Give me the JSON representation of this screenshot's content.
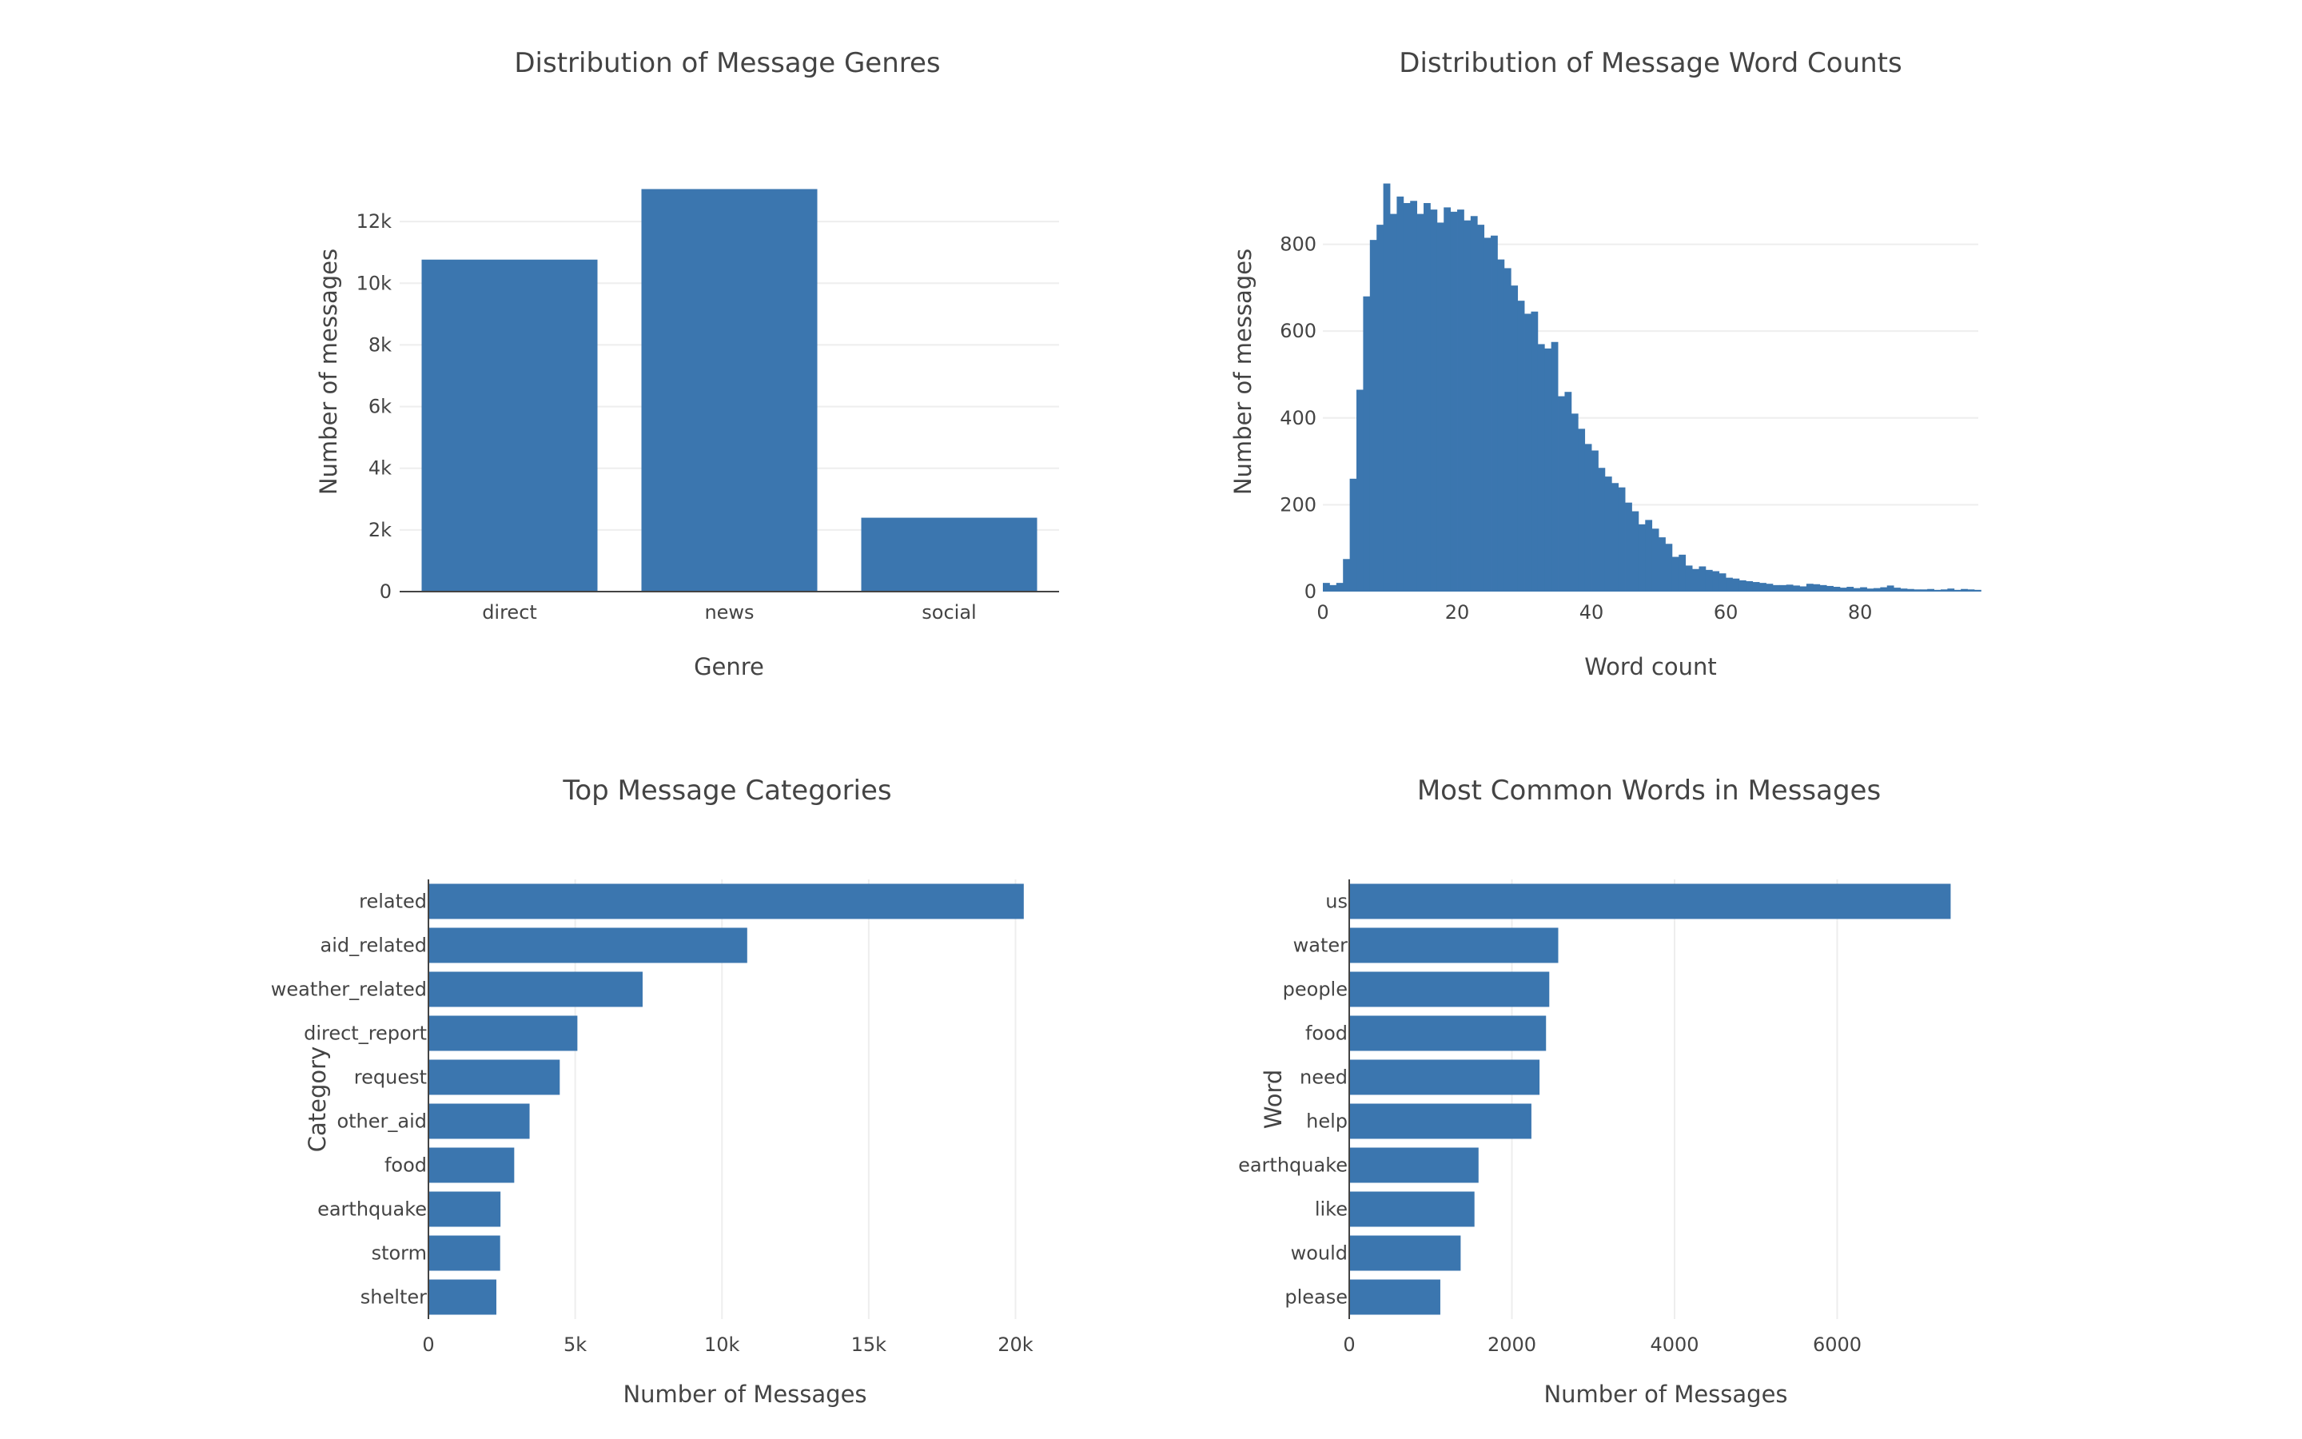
{
  "chart_data": [
    {
      "type": "bar",
      "title": "Distribution of Message Genres",
      "xlabel": "Genre",
      "ylabel": "Number of messages",
      "categories": [
        "direct",
        "news",
        "social"
      ],
      "values": [
        10766,
        13054,
        2396
      ],
      "ylim": [
        0,
        13741
      ],
      "yticks": [
        0,
        2000,
        4000,
        6000,
        8000,
        10000,
        12000
      ],
      "ytick_labels": [
        "0",
        "2k",
        "4k",
        "6k",
        "8k",
        "10k",
        "12k"
      ],
      "grid": true,
      "color": "#3b76af"
    },
    {
      "type": "bar",
      "title": "Distribution of Message Word Counts",
      "xlabel": "Word count",
      "ylabel": "Number of messages",
      "bin_width": 1,
      "bin_start": 0,
      "values": [
        20,
        15,
        20,
        75,
        260,
        465,
        680,
        810,
        845,
        940,
        870,
        910,
        895,
        900,
        870,
        895,
        880,
        850,
        885,
        875,
        880,
        855,
        865,
        845,
        815,
        820,
        765,
        745,
        705,
        670,
        640,
        645,
        570,
        560,
        575,
        450,
        460,
        410,
        375,
        340,
        325,
        285,
        265,
        250,
        240,
        205,
        185,
        155,
        165,
        145,
        125,
        110,
        80,
        85,
        60,
        52,
        58,
        50,
        47,
        42,
        32,
        30,
        26,
        24,
        22,
        20,
        18,
        15,
        15,
        16,
        14,
        12,
        18,
        17,
        15,
        13,
        11,
        9,
        11,
        8,
        10,
        7,
        8,
        10,
        14,
        9,
        7,
        6,
        5,
        5,
        6,
        4,
        5,
        7,
        4,
        6,
        5,
        4
      ],
      "xlim": [
        0,
        97.6
      ],
      "ylim": [
        0,
        976
      ],
      "xticks": [
        0,
        20,
        40,
        60,
        80
      ],
      "yticks": [
        0,
        200,
        400,
        600,
        800
      ],
      "grid": true,
      "color": "#3b76af"
    },
    {
      "type": "bar",
      "orientation": "horizontal",
      "title": "Top Message Categories",
      "xlabel": "Number of Messages",
      "ylabel": "Category",
      "categories": [
        "related",
        "aid_related",
        "weather_related",
        "direct_report",
        "request",
        "other_aid",
        "food",
        "earthquake",
        "storm",
        "shelter"
      ],
      "values": [
        20282,
        10860,
        7297,
        5075,
        4474,
        3446,
        2923,
        2455,
        2443,
        2314
      ],
      "xlim": [
        0,
        21349
      ],
      "xticks": [
        0,
        5000,
        10000,
        15000,
        20000
      ],
      "xtick_labels": [
        "0",
        "5k",
        "10k",
        "15k",
        "20k"
      ],
      "grid": true,
      "color": "#3b76af"
    },
    {
      "type": "bar",
      "orientation": "horizontal",
      "title": "Most Common Words in Messages",
      "xlabel": "Number of Messages",
      "ylabel": "Word",
      "categories": [
        "us",
        "water",
        "people",
        "food",
        "need",
        "help",
        "earthquake",
        "like",
        "would",
        "please"
      ],
      "values": [
        7395,
        2570,
        2460,
        2420,
        2340,
        2240,
        1590,
        1540,
        1370,
        1120
      ],
      "xlim": [
        0,
        7784
      ],
      "xticks": [
        0,
        2000,
        4000,
        6000
      ],
      "xtick_labels": [
        "0",
        "2000",
        "4000",
        "6000"
      ],
      "grid": true,
      "color": "#3b76af"
    }
  ]
}
